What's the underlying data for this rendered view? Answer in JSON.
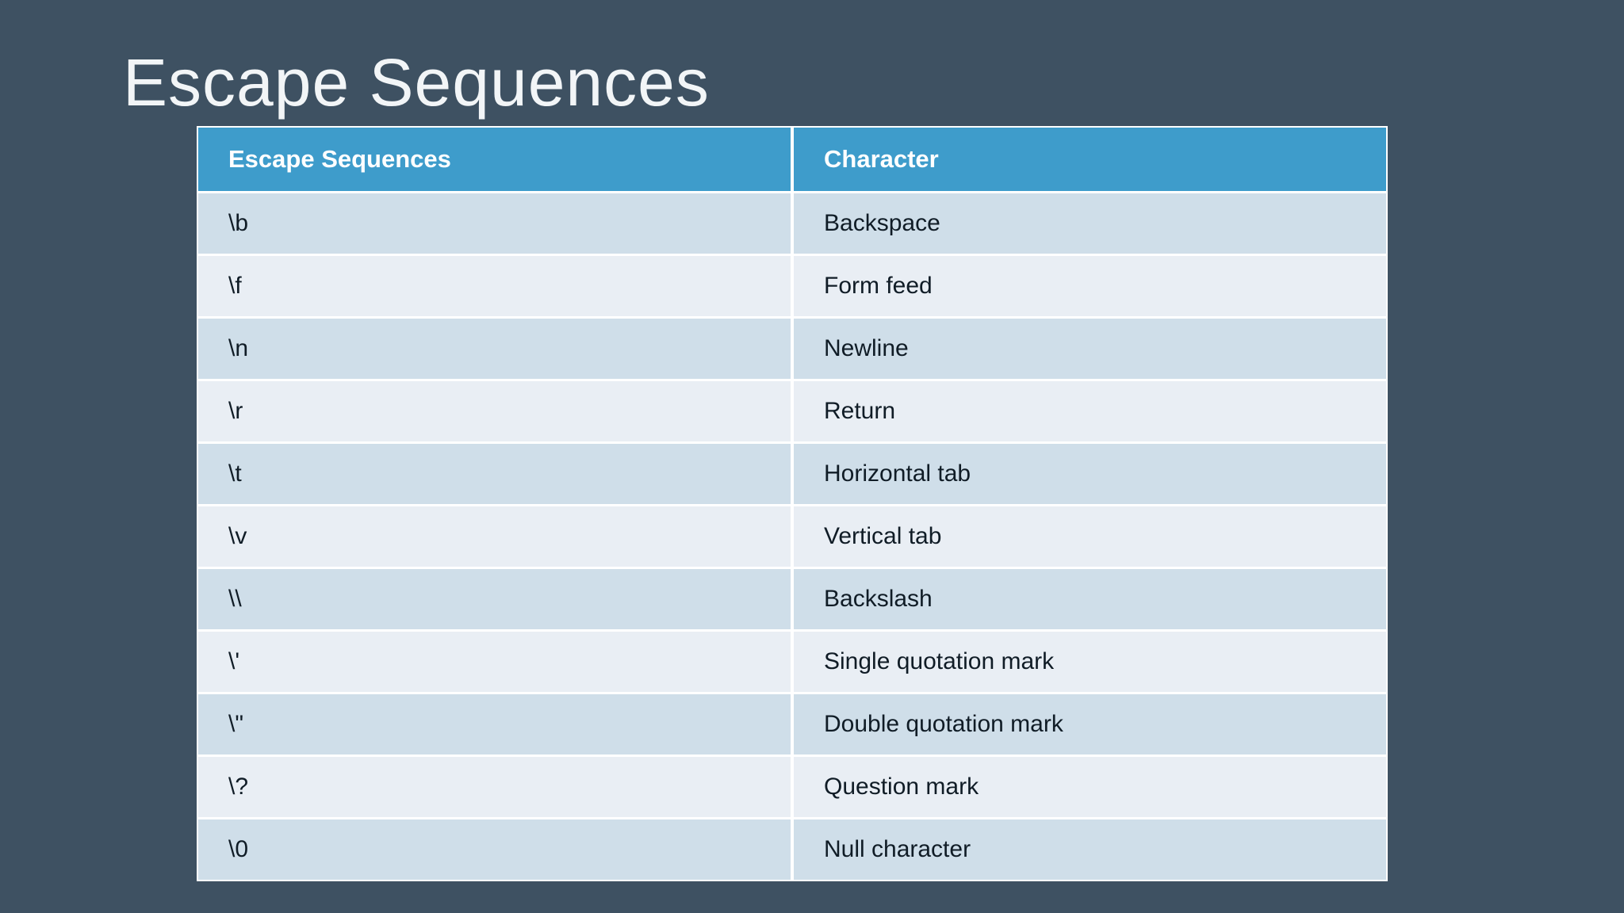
{
  "title": "Escape Sequences",
  "colors": {
    "background": "#3E5162",
    "header_bg": "#3E9CCB",
    "header_text": "#FFFFFF",
    "row_dark": "#CFDEE9",
    "row_light": "#E9EEF4",
    "cell_text": "#101C26",
    "title_text": "#F2F5F7",
    "grid": "#FFFFFF"
  },
  "table": {
    "columns": [
      "Escape Sequences",
      "Character"
    ],
    "rows": [
      {
        "sequence": "\\b",
        "character": "Backspace"
      },
      {
        "sequence": "\\f",
        "character": "Form feed"
      },
      {
        "sequence": "\\n",
        "character": "Newline"
      },
      {
        "sequence": "\\r",
        "character": "Return"
      },
      {
        "sequence": "\\t",
        "character": "Horizontal tab"
      },
      {
        "sequence": "\\v",
        "character": "Vertical tab"
      },
      {
        "sequence": "\\\\",
        "character": "Backslash"
      },
      {
        "sequence": "\\'",
        "character": "Single quotation mark"
      },
      {
        "sequence": "\\\"",
        "character": "Double quotation mark"
      },
      {
        "sequence": "\\?",
        "character": "Question mark"
      },
      {
        "sequence": "\\0",
        "character": "Null character"
      }
    ]
  }
}
